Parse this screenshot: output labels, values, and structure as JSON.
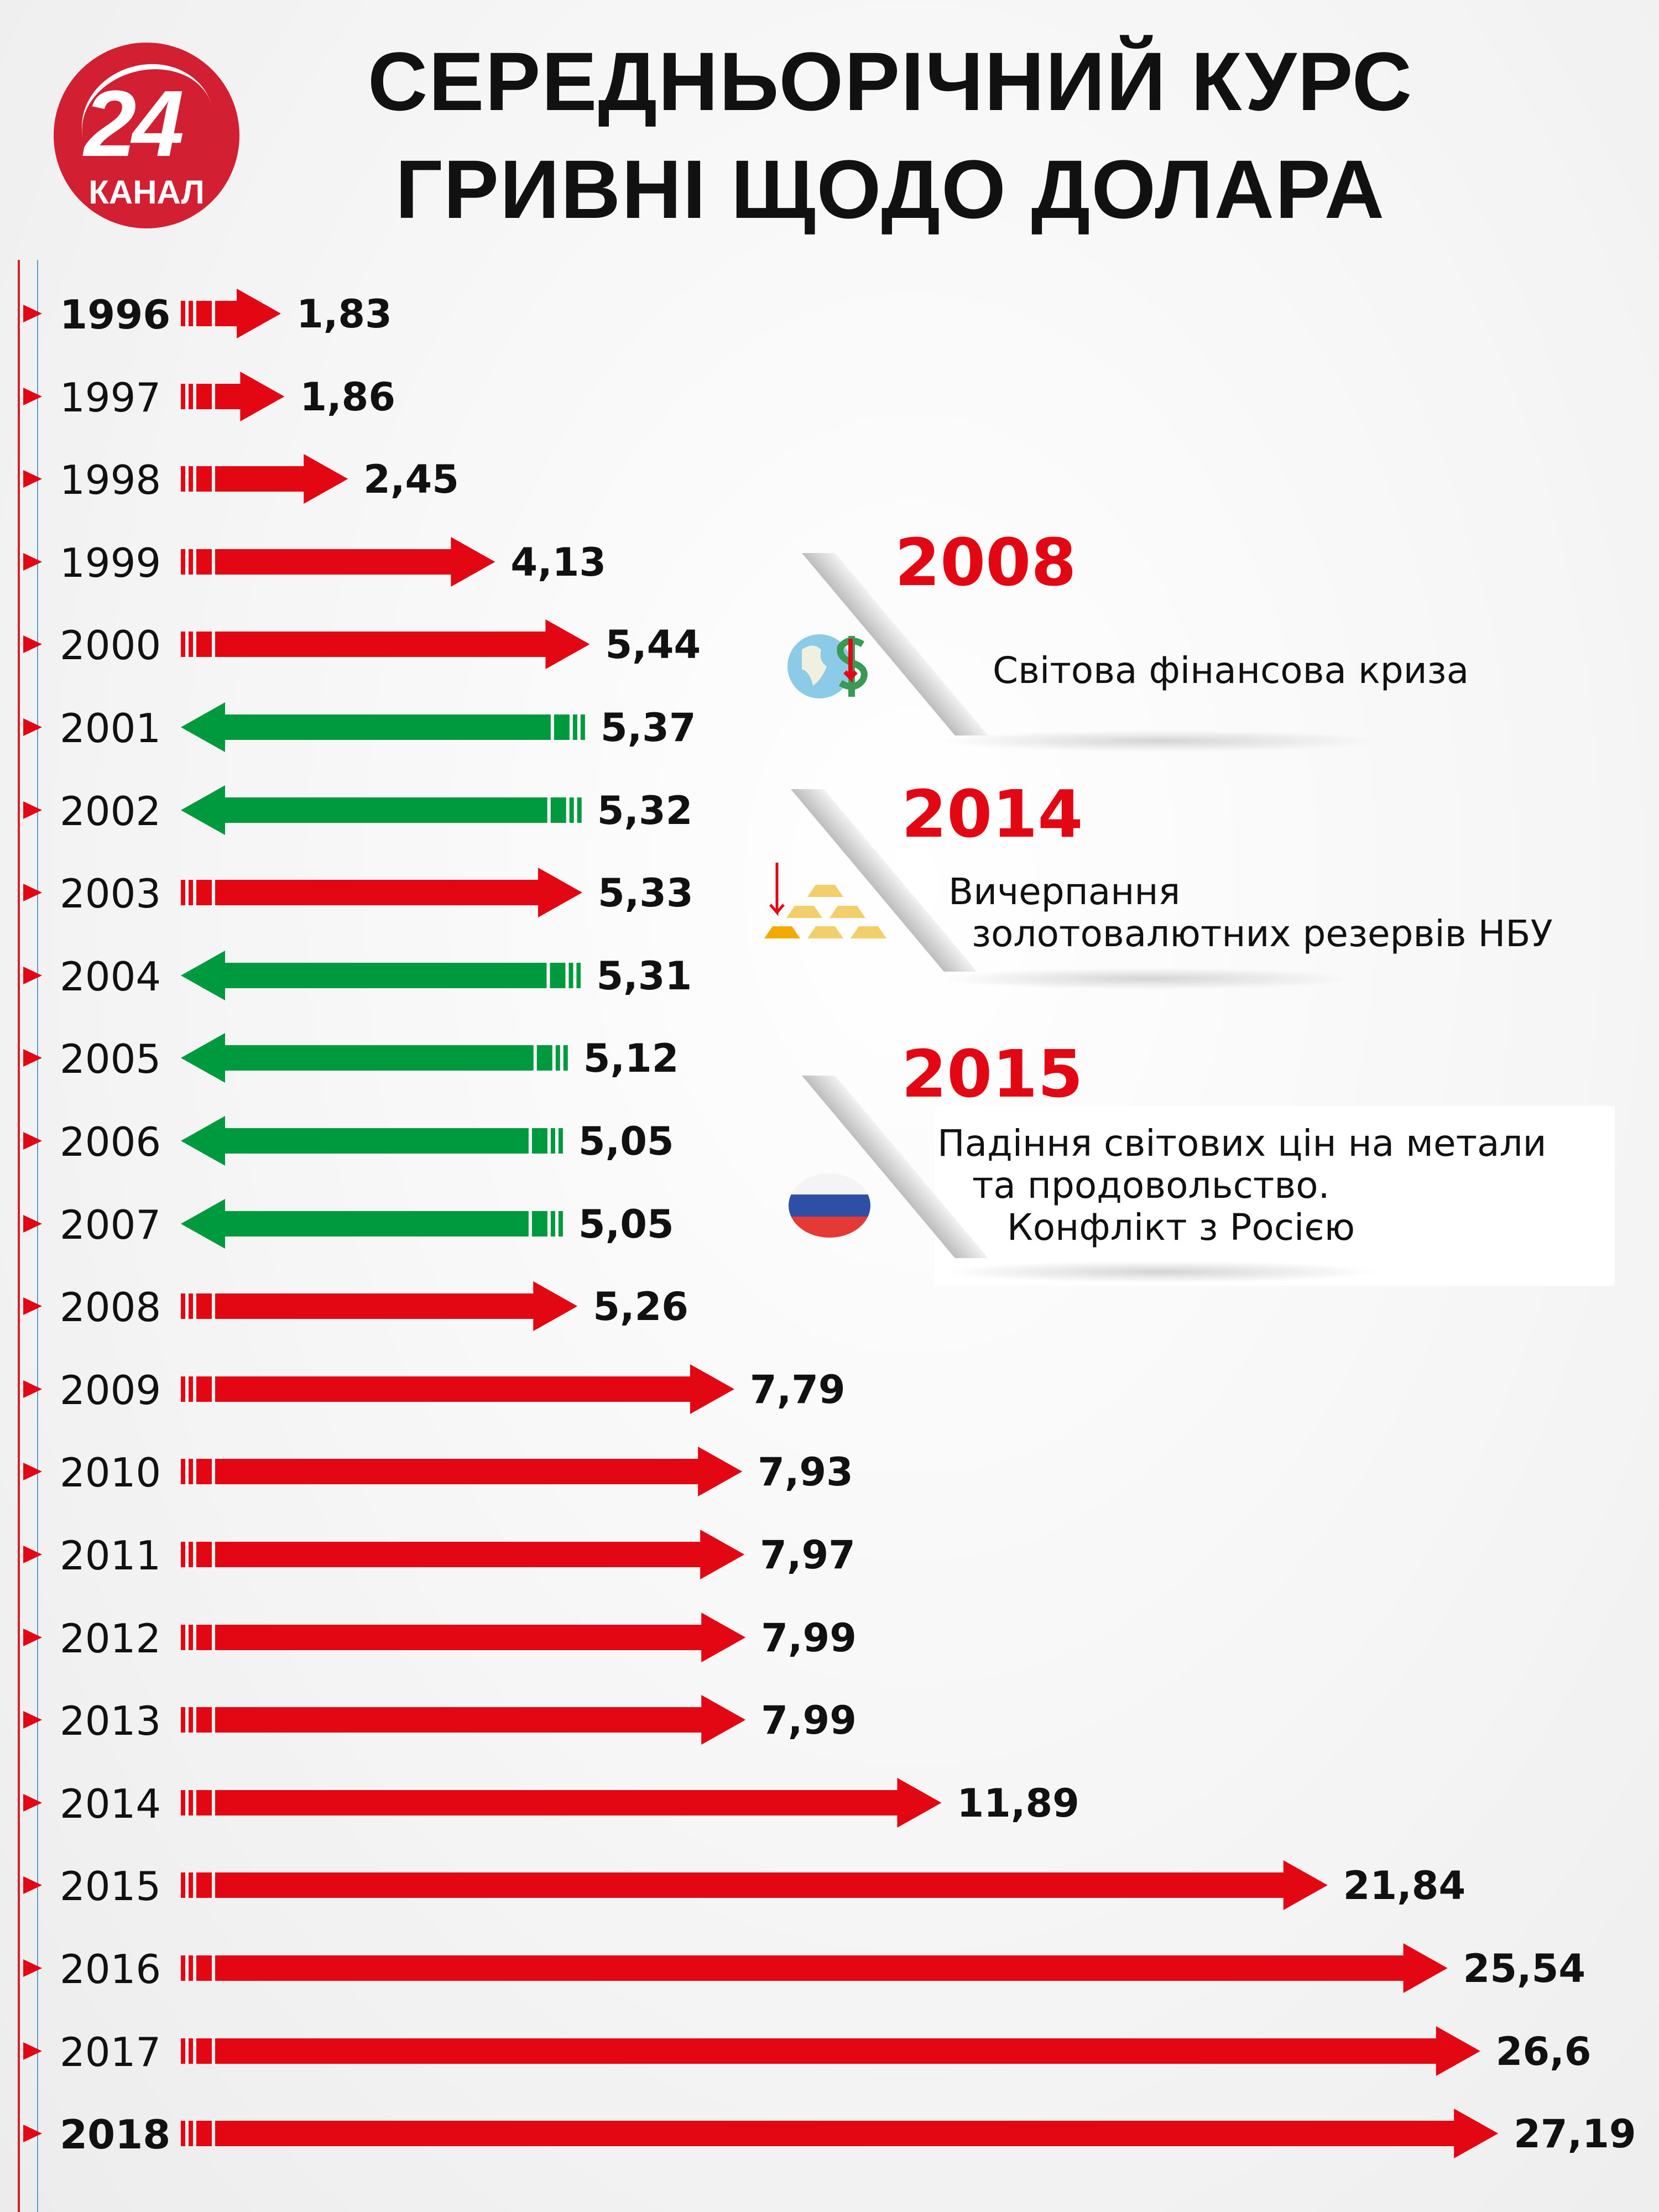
{
  "logo": {
    "number": "24",
    "channel": "КАНАЛ"
  },
  "title_lines": [
    "СЕРЕДНЬОРІЧНИЙ КУРС",
    "ГРИВНІ ЩОДО ДОЛАРА"
  ],
  "colors": {
    "increase": "#e30613",
    "decrease": "#009a3e",
    "accent": "#e30613",
    "logo": "#d21f32"
  },
  "chart_data": {
    "type": "bar",
    "orientation": "horizontal",
    "title": "СЕРЕДНЬОРІЧНИЙ КУРС ГРИВНІ ЩОДО ДОЛАРА",
    "categories": [
      "1996",
      "1997",
      "1998",
      "1999",
      "2000",
      "2001",
      "2002",
      "2003",
      "2004",
      "2005",
      "2006",
      "2007",
      "2008",
      "2009",
      "2010",
      "2011",
      "2012",
      "2013",
      "2014",
      "2015",
      "2016",
      "2017",
      "2018"
    ],
    "values": [
      1.83,
      1.86,
      2.45,
      4.13,
      5.44,
      5.37,
      5.32,
      5.33,
      5.31,
      5.12,
      5.05,
      5.05,
      5.26,
      7.79,
      7.93,
      7.97,
      7.99,
      7.99,
      11.89,
      21.84,
      25.54,
      26.6,
      27.19
    ],
    "labels": [
      "1,83",
      "1,86",
      "2,45",
      "4,13",
      "5,44",
      "5,37",
      "5,32",
      "5,33",
      "5,31",
      "5,12",
      "5,05",
      "5,05",
      "5,26",
      "7,79",
      "7,93",
      "7,97",
      "7,99",
      "7,99",
      "11,89",
      "21,84",
      "25,54",
      "26,6",
      "27,19"
    ],
    "direction": [
      "up",
      "up",
      "up",
      "up",
      "up",
      "down",
      "down",
      "up",
      "down",
      "down",
      "down",
      "down",
      "up",
      "up",
      "up",
      "up",
      "up",
      "up",
      "up",
      "up",
      "up",
      "up",
      "up"
    ]
  },
  "events": [
    {
      "year": "2008",
      "text": "Світова фінансова криза",
      "icon": "globe-dollar-icon"
    },
    {
      "year": "2014",
      "text": "Вичерпання\n  золотовалютних резервів НБУ",
      "icon": "gold-bars-icon"
    },
    {
      "year": "2015",
      "text": "Падіння світових цін на метали\n   та продовольство.\n      Конфлікт з Росією",
      "icon": "russia-flag-icon"
    }
  ]
}
